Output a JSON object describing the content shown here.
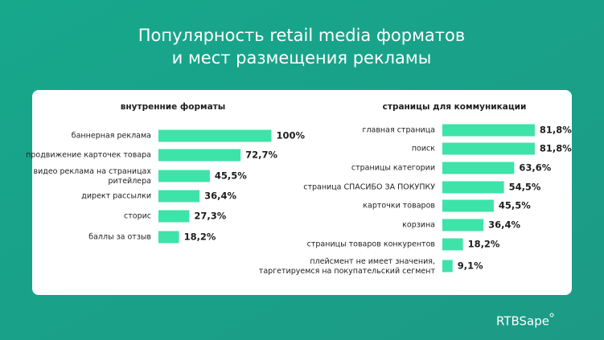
{
  "title": [
    "Популярность retail media форматов",
    "и мест размещения рекламы"
  ],
  "brand": "RTBSape",
  "chart_data": [
    {
      "type": "bar",
      "orientation": "horizontal",
      "title": "внутренние форматы",
      "color": "#3ee3a9",
      "categories": [
        "баннерная реклама",
        "продвижение карточек товара",
        "видео реклама на страницах\nритейлера",
        "директ рассылки",
        "сторис",
        "баллы за отзыв"
      ],
      "values": [
        100,
        72.7,
        45.5,
        36.4,
        27.3,
        18.2
      ],
      "value_labels": [
        "100%",
        "72,7%",
        "45,5%",
        "36,4%",
        "27,3%",
        "18,2%"
      ]
    },
    {
      "type": "bar",
      "orientation": "horizontal",
      "title": "страницы для коммуникации",
      "color": "#3ee3a9",
      "categories": [
        "главная страница",
        "поиск",
        "страницы категории",
        "страница СПАСИБО ЗА ПОКУПКУ",
        "карточки товаров",
        "корзина",
        "страницы товаров конкурентов",
        "плейсмент не имеет значения,\nтаргетируемся на покупательский сегмент"
      ],
      "values": [
        81.8,
        81.8,
        63.6,
        54.5,
        45.5,
        36.4,
        18.2,
        9.1
      ],
      "value_labels": [
        "81,8%",
        "81,8%",
        "63,6%",
        "54,5%",
        "45,5%",
        "36,4%",
        "18,2%",
        "9,1%"
      ]
    }
  ]
}
